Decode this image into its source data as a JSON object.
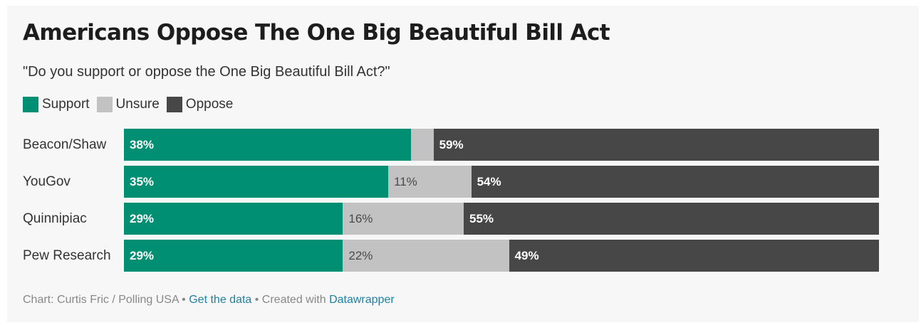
{
  "chart_data": {
    "type": "bar",
    "stacked": true,
    "orientation": "horizontal",
    "title": "Americans Oppose The One Big Beautiful Bill Act",
    "subtitle": "\"Do you support or oppose the One Big Beautiful Bill Act?\"",
    "categories": [
      "Beacon/Shaw",
      "YouGov",
      "Quinnipiac",
      "Pew Research"
    ],
    "series": [
      {
        "name": "Support",
        "color": "#008f73",
        "values": [
          38,
          35,
          29,
          29
        ],
        "labels": [
          "38%",
          "35%",
          "29%",
          "29%"
        ]
      },
      {
        "name": "Unsure",
        "color": "#c2c2c2",
        "values": [
          3,
          11,
          16,
          22
        ],
        "labels": [
          "",
          "11%",
          "16%",
          "22%"
        ]
      },
      {
        "name": "Oppose",
        "color": "#474747",
        "values": [
          59,
          54,
          55,
          49
        ],
        "labels": [
          "59%",
          "54%",
          "55%",
          "49%"
        ]
      }
    ],
    "xlim": [
      0,
      100
    ],
    "legend": "top-left",
    "grid": false
  },
  "footer": {
    "source": "Chart: Curtis Fric / Polling USA",
    "sep1": " • ",
    "get_data": "Get the data",
    "sep2": " • Created with ",
    "tool": "Datawrapper"
  }
}
